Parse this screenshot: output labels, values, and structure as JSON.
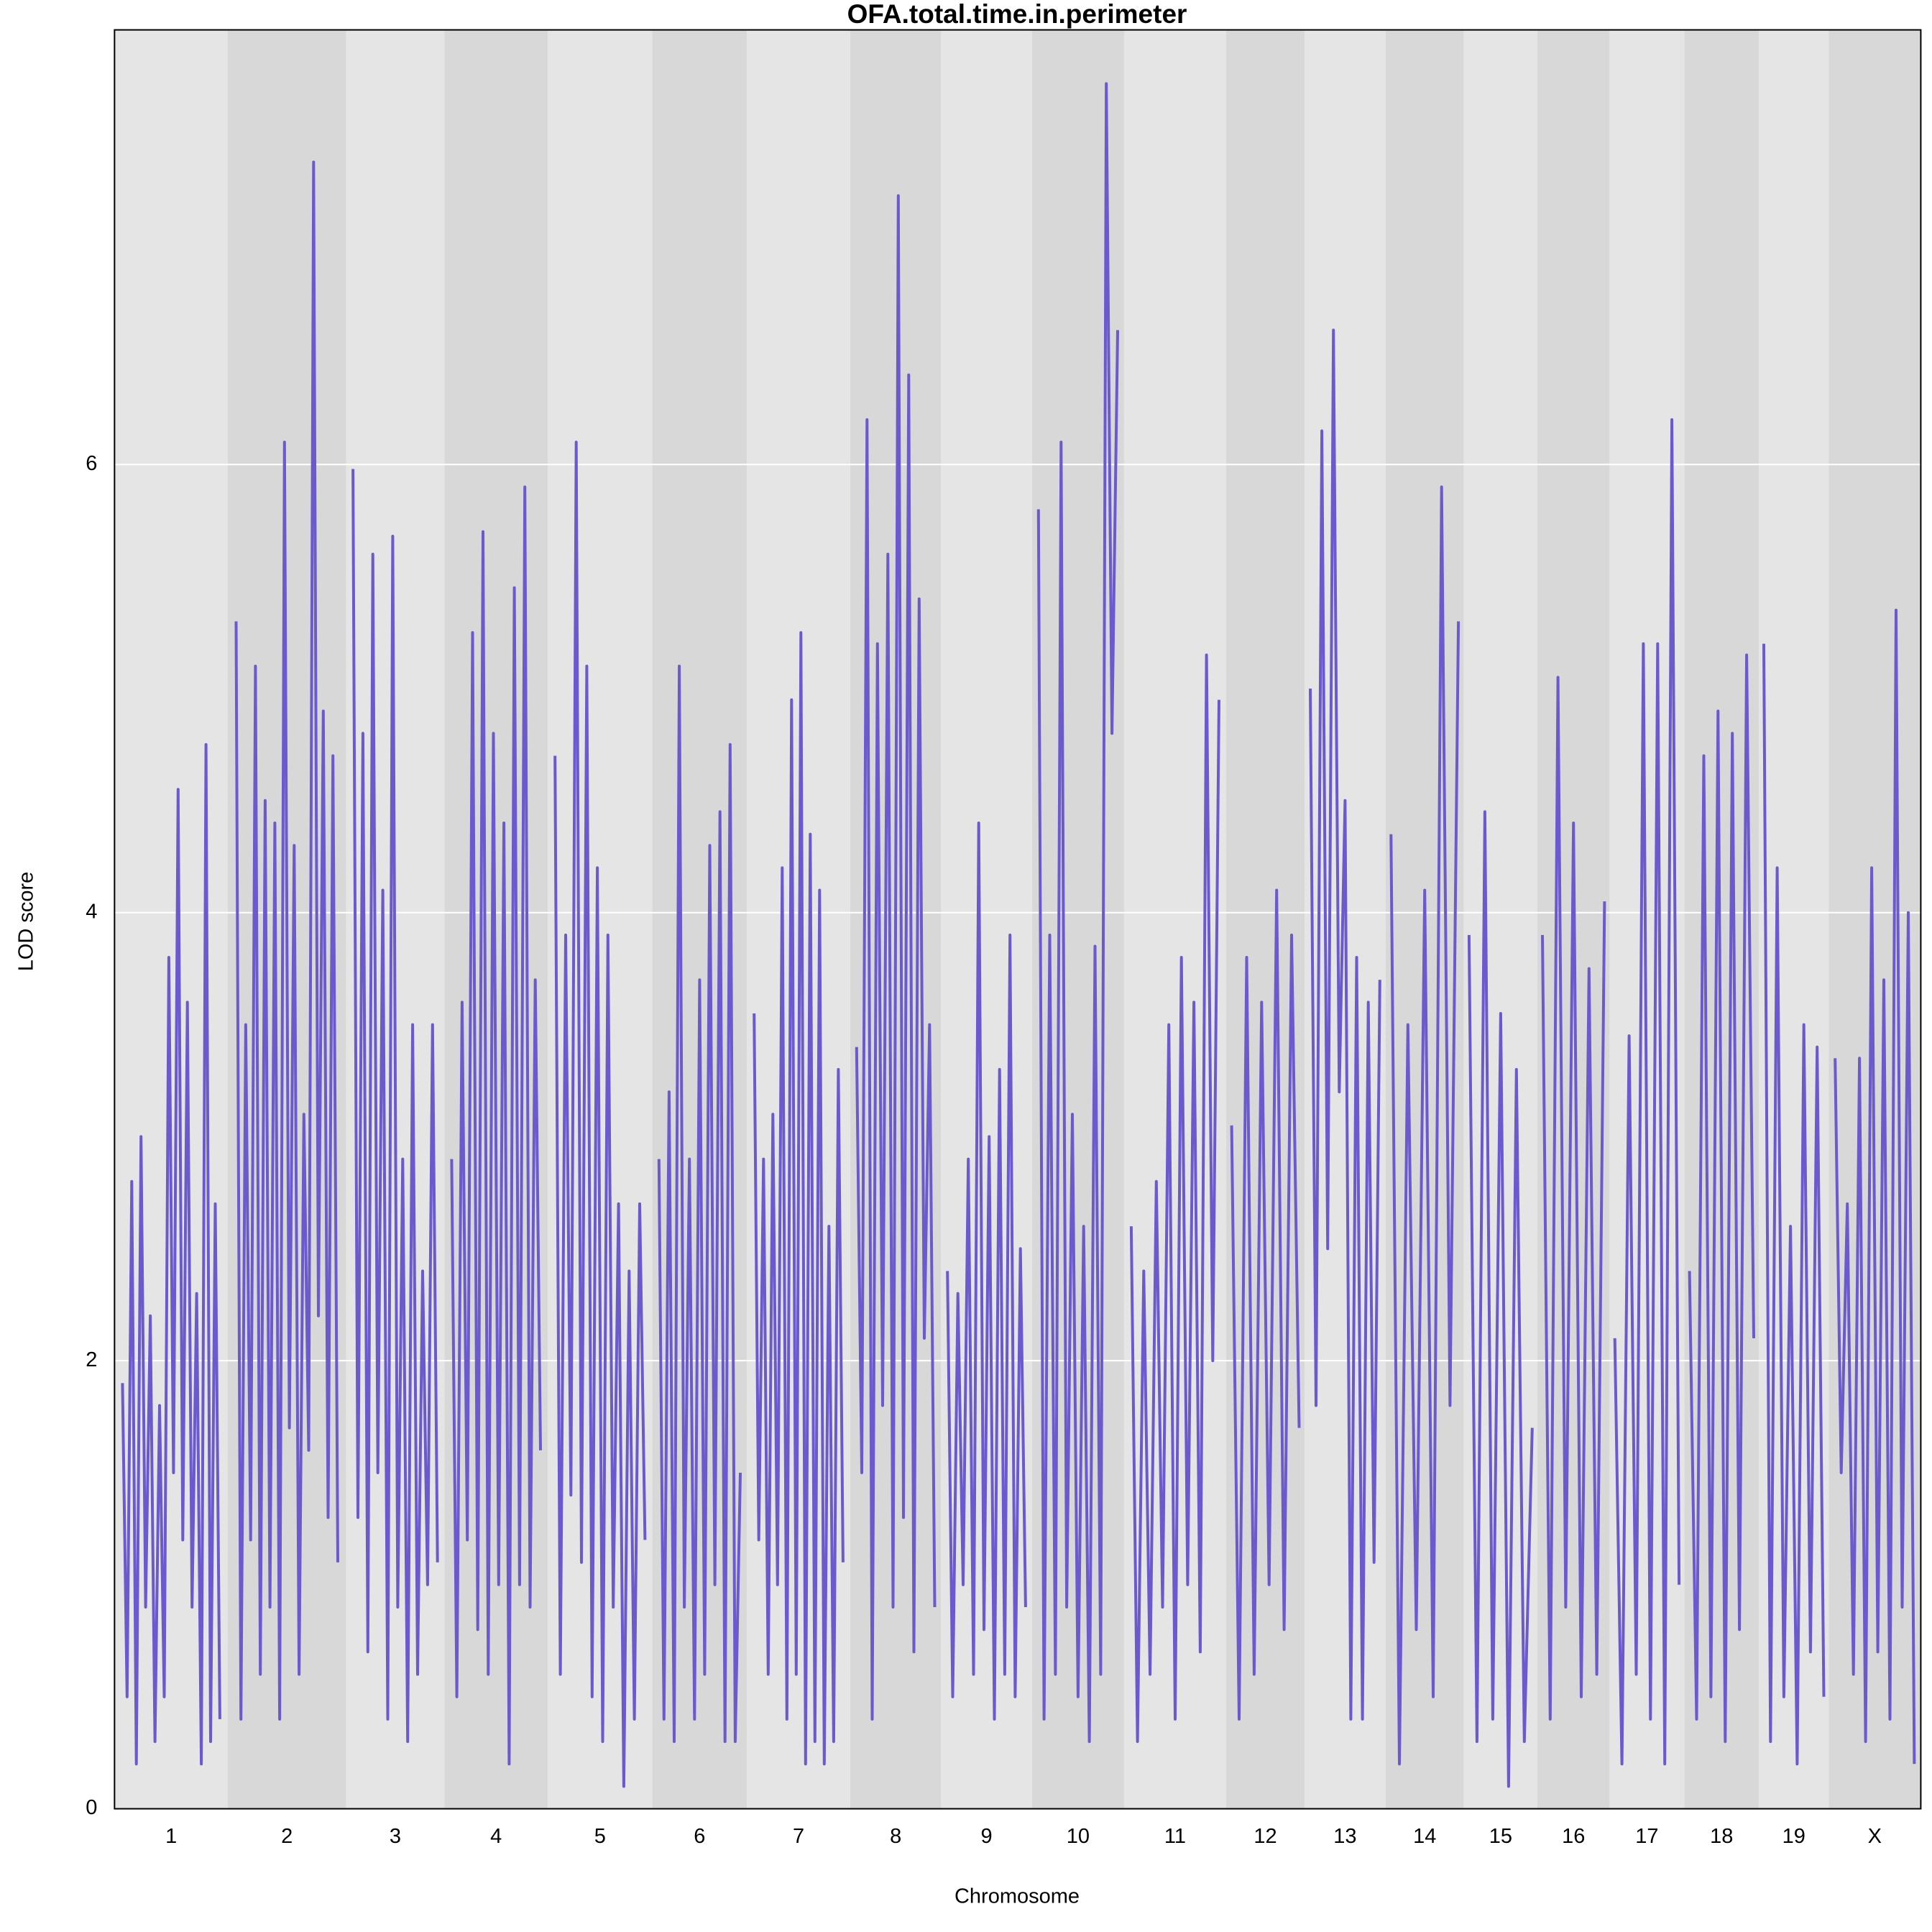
{
  "chart_data": {
    "type": "line",
    "title": "OFA.total.time.in.perimeter",
    "x_label": "Chromosome",
    "y_label": "LOD score",
    "color": "#6a5acd",
    "ylim": [
      0,
      7.94
    ],
    "yticks": [
      0,
      2,
      4,
      6
    ],
    "grid": true,
    "series": [
      {
        "name": "1",
        "values": [
          1.9,
          0.5,
          2.8,
          0.2,
          3.0,
          0.9,
          2.2,
          0.3,
          1.8,
          0.5,
          3.8,
          1.5,
          4.55,
          1.2,
          3.6,
          0.9,
          2.3,
          0.2,
          4.75,
          0.3,
          2.7,
          0.4
        ]
      },
      {
        "name": "2",
        "values": [
          5.3,
          0.4,
          3.5,
          1.2,
          5.1,
          0.6,
          4.5,
          0.9,
          4.4,
          0.4,
          6.1,
          1.7,
          4.3,
          0.6,
          3.1,
          1.6,
          7.35,
          2.2,
          4.9,
          1.3,
          4.7,
          1.1
        ]
      },
      {
        "name": "3",
        "values": [
          5.98,
          1.3,
          4.8,
          0.7,
          5.6,
          1.5,
          4.1,
          0.4,
          5.68,
          0.9,
          2.9,
          0.3,
          3.5,
          0.6,
          2.4,
          1.0,
          3.5,
          1.1
        ]
      },
      {
        "name": "4",
        "values": [
          2.9,
          0.5,
          3.6,
          1.2,
          5.25,
          0.8,
          5.7,
          0.6,
          4.8,
          1.0,
          4.4,
          0.2,
          5.45,
          1.0,
          5.9,
          0.9,
          3.7,
          1.6
        ]
      },
      {
        "name": "5",
        "values": [
          4.7,
          0.6,
          3.9,
          1.4,
          6.1,
          1.1,
          5.1,
          0.5,
          4.2,
          0.3,
          3.9,
          0.9,
          2.7,
          0.1,
          2.4,
          0.4,
          2.7,
          1.2
        ]
      },
      {
        "name": "6",
        "values": [
          2.9,
          0.4,
          3.2,
          0.3,
          5.1,
          0.9,
          2.9,
          0.4,
          3.7,
          0.6,
          4.3,
          1.0,
          4.45,
          0.3,
          4.75,
          0.3,
          1.5
        ]
      },
      {
        "name": "7",
        "values": [
          3.55,
          1.2,
          2.9,
          0.6,
          3.1,
          1.0,
          4.2,
          0.4,
          4.95,
          0.6,
          5.25,
          0.2,
          4.35,
          0.3,
          4.1,
          0.2,
          2.6,
          0.3,
          3.3,
          1.1
        ]
      },
      {
        "name": "8",
        "values": [
          3.4,
          1.5,
          6.2,
          0.4,
          5.2,
          1.8,
          5.6,
          0.9,
          7.2,
          1.3,
          6.4,
          0.7,
          5.4,
          2.1,
          3.5,
          0.9
        ]
      },
      {
        "name": "9",
        "values": [
          2.4,
          0.5,
          2.3,
          1.0,
          2.9,
          0.6,
          4.4,
          0.8,
          3.0,
          0.4,
          3.3,
          0.6,
          3.9,
          0.5,
          2.5,
          0.9
        ]
      },
      {
        "name": "10",
        "values": [
          5.8,
          0.4,
          3.9,
          0.6,
          6.1,
          0.9,
          3.1,
          0.5,
          2.6,
          0.3,
          3.85,
          0.6,
          7.7,
          4.8,
          6.6
        ]
      },
      {
        "name": "11",
        "values": [
          2.6,
          0.3,
          2.4,
          0.6,
          2.8,
          0.9,
          3.5,
          0.4,
          3.8,
          1.0,
          3.6,
          0.7,
          5.15,
          2.0,
          4.95
        ]
      },
      {
        "name": "12",
        "values": [
          3.05,
          0.4,
          3.8,
          0.6,
          3.6,
          1.0,
          4.1,
          0.8,
          3.9,
          1.7
        ]
      },
      {
        "name": "13",
        "values": [
          5.0,
          1.8,
          6.15,
          2.5,
          6.6,
          3.2,
          4.5,
          0.4,
          3.8,
          0.4,
          3.6,
          1.1,
          3.7
        ]
      },
      {
        "name": "14",
        "values": [
          4.35,
          0.2,
          3.5,
          0.8,
          4.1,
          0.5,
          5.9,
          1.8,
          5.3
        ]
      },
      {
        "name": "15",
        "values": [
          3.9,
          0.3,
          4.45,
          0.4,
          3.55,
          0.1,
          3.3,
          0.3,
          1.7
        ]
      },
      {
        "name": "16",
        "values": [
          3.9,
          0.4,
          5.05,
          0.9,
          4.4,
          0.5,
          3.75,
          0.6,
          4.05
        ]
      },
      {
        "name": "17",
        "values": [
          2.1,
          0.2,
          3.45,
          0.6,
          5.2,
          0.4,
          5.2,
          0.2,
          6.2,
          1.0
        ]
      },
      {
        "name": "18",
        "values": [
          2.4,
          0.4,
          4.7,
          0.5,
          4.9,
          0.3,
          4.8,
          0.8,
          5.15,
          2.1
        ]
      },
      {
        "name": "19",
        "values": [
          5.2,
          0.3,
          4.2,
          0.5,
          2.6,
          0.2,
          3.5,
          0.7,
          3.4,
          0.5
        ]
      },
      {
        "name": "X",
        "values": [
          3.35,
          1.5,
          2.7,
          0.6,
          3.35,
          0.3,
          4.2,
          0.7,
          3.7,
          0.4,
          5.35,
          0.9,
          4.0,
          0.2
        ]
      }
    ]
  }
}
